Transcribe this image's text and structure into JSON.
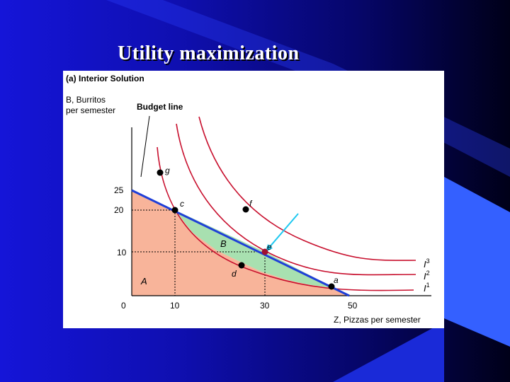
{
  "slide": {
    "title": "Utility maximization",
    "background_colors": [
      "#1515d8",
      "#06066a",
      "#000018"
    ],
    "accent_color": "#2f5fff"
  },
  "figure": {
    "panel_title": "(a) Interior Solution",
    "y_axis_label_line1": "B, Burritos",
    "y_axis_label_line2": "per semester",
    "x_axis_label": "Z, Pizzas per semester",
    "budget_line_label": "Budget line",
    "region_a_label": "A",
    "region_b_label": "B",
    "y_ticks": [
      "25",
      "20",
      "10"
    ],
    "x_ticks": [
      "10",
      "30",
      "50"
    ],
    "origin_label": "0",
    "points": [
      {
        "label": "g",
        "color": "#000000"
      },
      {
        "label": "c",
        "color": "#000000"
      },
      {
        "label": "f",
        "color": "#000000"
      },
      {
        "label": "e",
        "color": "#a01030"
      },
      {
        "label": "d",
        "color": "#000000"
      },
      {
        "label": "a",
        "color": "#000000"
      }
    ],
    "curves": [
      {
        "name": "I",
        "superscript": "3"
      },
      {
        "name": "I",
        "superscript": "2"
      },
      {
        "name": "I",
        "superscript": "1"
      }
    ],
    "colors": {
      "budget_line": "#1f3fd8",
      "indifference_curves": "#c8102e",
      "region_a": "#f8b49a",
      "region_b": "#a8e0b0",
      "arrow": "#1ec8f0"
    }
  },
  "chart_data": {
    "type": "diagram",
    "title": "(a) Interior Solution",
    "xlabel": "Z, Pizzas per semester",
    "ylabel": "B, Burritos per semester",
    "x_ticks": [
      10,
      30,
      50
    ],
    "y_ticks": [
      10,
      20,
      25
    ],
    "budget_line": {
      "x_intercept": 50,
      "y_intercept": 25
    },
    "points": [
      {
        "label": "c",
        "x": 10,
        "y": 20
      },
      {
        "label": "e",
        "x": 30,
        "y": 10
      },
      {
        "label": "a",
        "x": 47,
        "y": 1.5
      },
      {
        "label": "d",
        "x": 25,
        "y": 6
      },
      {
        "label": "f",
        "x": 25,
        "y": 16
      },
      {
        "label": "g",
        "x": 6,
        "y": 22
      }
    ],
    "indifference_curves": [
      "I1",
      "I2",
      "I3"
    ]
  }
}
